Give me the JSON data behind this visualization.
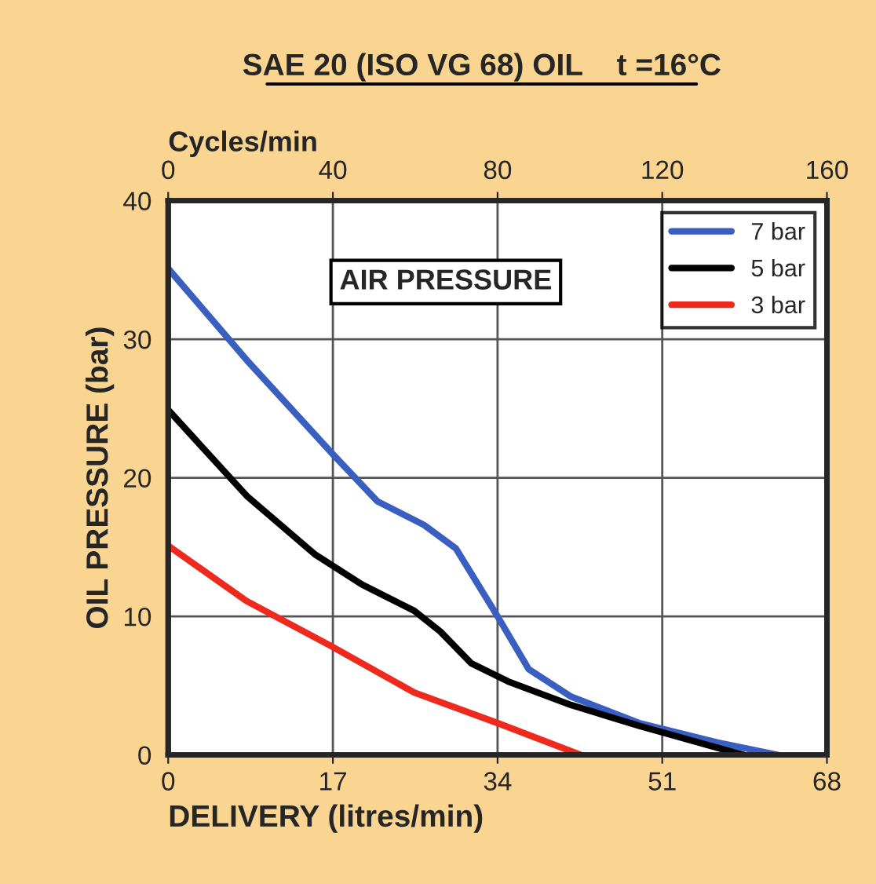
{
  "chart_data": {
    "type": "line",
    "title": "SAE 20 (ISO VG 68) OIL    t =16°C",
    "xlabel": "DELIVERY (litres/min)",
    "ylabel": "OIL PRESSURE (bar)",
    "x2label": "Cycles/min",
    "legend_title": "AIR PRESSURE",
    "xlim": [
      0,
      68
    ],
    "xticks": [
      0,
      17,
      34,
      51,
      68
    ],
    "x2lim": [
      0,
      160
    ],
    "x2ticks": [
      0,
      40,
      80,
      120,
      160
    ],
    "ylim": [
      0,
      40
    ],
    "yticks": [
      0,
      10,
      20,
      30,
      40
    ],
    "grid": true,
    "legend": "top right",
    "marker": "none",
    "line_style": "solid",
    "series": [
      {
        "name": "7 bar",
        "color": "#3a5fc0",
        "x": [
          0,
          8.1,
          17,
          21.6,
          26.4,
          29.7,
          34,
          37.2,
          41.6,
          48.6,
          56.7,
          62.9
        ],
        "values": [
          35.1,
          28.5,
          21.7,
          18.3,
          16.6,
          14.9,
          10,
          6.2,
          4.2,
          2.3,
          0.9,
          0
        ]
      },
      {
        "name": "5 bar",
        "color": "#000000",
        "x": [
          0,
          8.1,
          15.1,
          20,
          25.4,
          28.1,
          31.3,
          35.1,
          41.6,
          48.6,
          58.3,
          59.4
        ],
        "values": [
          24.9,
          18.7,
          14.5,
          12.3,
          10.4,
          8.9,
          6.6,
          5.3,
          3.6,
          2.1,
          0.2,
          0
        ]
      },
      {
        "name": "3 bar",
        "color": "#ee2a1e",
        "x": [
          0,
          8.1,
          16.7,
          25.4,
          34,
          42.6
        ],
        "values": [
          15.1,
          11.1,
          7.9,
          4.5,
          2.3,
          0
        ]
      }
    ]
  }
}
